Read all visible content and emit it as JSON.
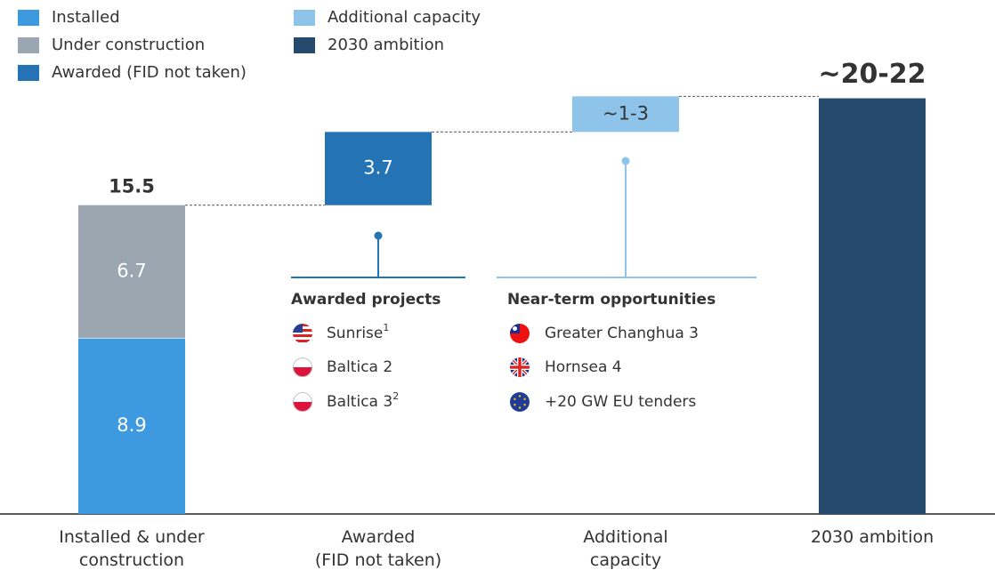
{
  "chart_data": {
    "type": "waterfall",
    "categories": [
      "Installed & under\nconstruction",
      "Awarded\n(FID not taken)",
      "Additional\ncapacity",
      "2030 ambition"
    ],
    "measure": [
      "relative",
      "relative",
      "relative",
      "total"
    ],
    "series": [
      {
        "name": "Installed",
        "color": "#3d9ae0",
        "values": [
          8.9,
          null,
          null,
          null
        ]
      },
      {
        "name": "Under construction",
        "color": "#9ca6b0",
        "values": [
          6.7,
          null,
          null,
          null
        ]
      },
      {
        "name": "Awarded (FID not taken)",
        "color": "#2373b5",
        "values": [
          null,
          3.7,
          null,
          null
        ]
      },
      {
        "name": "Additional capacity",
        "color": "#8ec3ea",
        "values": [
          null,
          null,
          1.8,
          null
        ],
        "value_labels": [
          null,
          null,
          "~1-3",
          null
        ]
      },
      {
        "name": "2030 ambition",
        "color": "#264a6e",
        "values": [
          null,
          null,
          null,
          21
        ],
        "value_labels": [
          null,
          null,
          null,
          "~20-22"
        ],
        "label_position": "above"
      }
    ],
    "totals": [
      15.5,
      null,
      null,
      null
    ]
  },
  "annotations": {
    "awarded": {
      "title": "Awarded projects",
      "items": [
        {
          "name": "Sunrise",
          "note": "1"
        },
        {
          "name": "Baltica 2"
        },
        {
          "name": "Baltica 3",
          "note": "2"
        }
      ]
    },
    "opportunities": {
      "title": "Near-term opportunities",
      "items": [
        {
          "name": "Greater Changhua 3"
        },
        {
          "name": "Hornsea 4"
        },
        {
          "name": "+20 GW EU tenders"
        }
      ]
    }
  }
}
